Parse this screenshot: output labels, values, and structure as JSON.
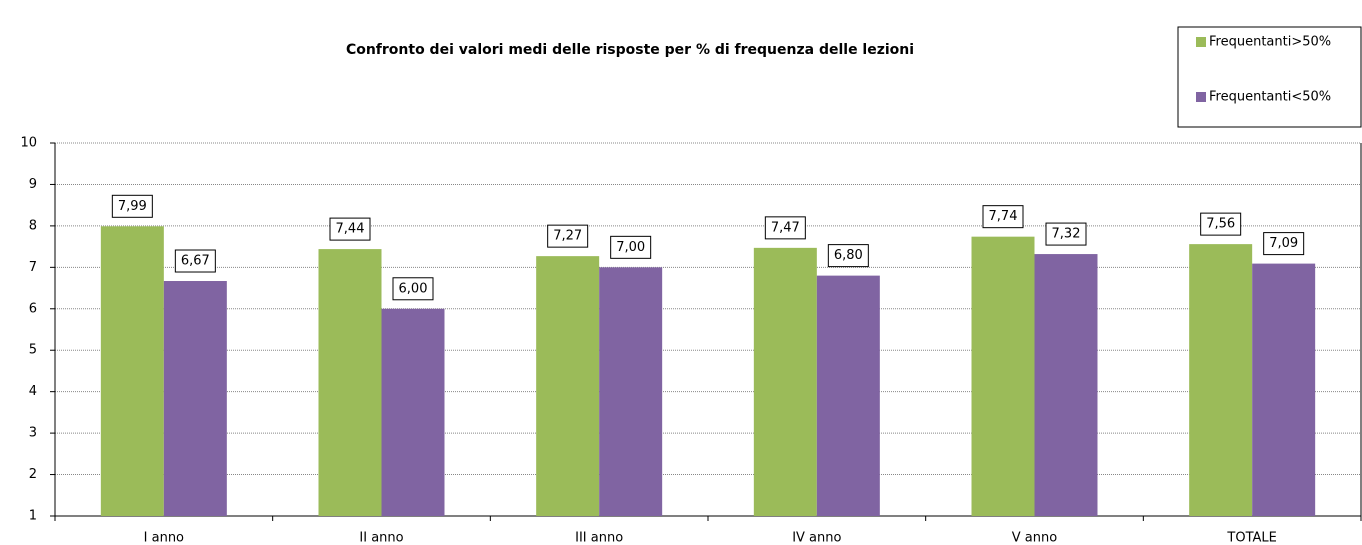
{
  "chart_data": {
    "type": "bar",
    "title": "Confronto dei valori medi delle risposte per % di frequenza delle lezioni",
    "categories": [
      "I anno",
      "II anno",
      "III anno",
      "IV anno",
      "V anno",
      "TOTALE"
    ],
    "series": [
      {
        "name": "Frequentanti>50%",
        "color": "#9bbb59",
        "values": [
          7.99,
          7.44,
          7.27,
          7.47,
          7.74,
          7.56
        ],
        "value_labels": [
          "7,99",
          "7,44",
          "7,27",
          "7,47",
          "7,74",
          "7,56"
        ]
      },
      {
        "name": "Frequentanti<50%",
        "color": "#8064a2",
        "values": [
          6.67,
          6.0,
          7.0,
          6.8,
          7.32,
          7.09
        ],
        "value_labels": [
          "6,67",
          "6,00",
          "7,00",
          "6,80",
          "7,32",
          "7,09"
        ]
      }
    ],
    "ylim": [
      1,
      10
    ],
    "yticks": [
      1,
      2,
      3,
      4,
      5,
      6,
      7,
      8,
      9,
      10
    ],
    "grid": true,
    "legend": "top-right"
  }
}
